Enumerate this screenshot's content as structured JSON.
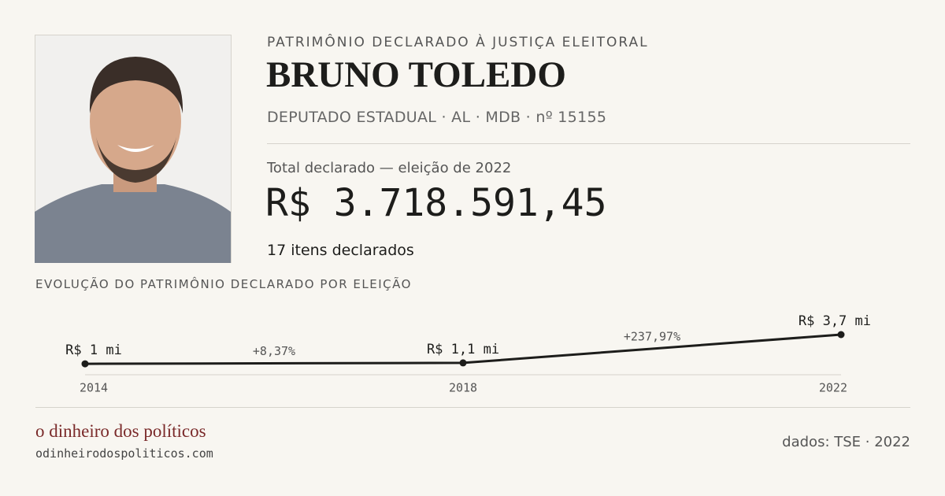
{
  "header": {
    "kicker": "PATRIMÔNIO DECLARADO À JUSTIÇA ELEITORAL",
    "name": "BRUNO TOLEDO",
    "subtitle": "DEPUTADO ESTADUAL · AL · MDB · nº 15155",
    "total_label": "Total declarado — eleição de 2022",
    "total": "R$ 3.718.591,45",
    "items": "17 itens declarados"
  },
  "chart_data": {
    "type": "line",
    "title": "EVOLUÇÃO DO PATRIMÔNIO DECLARADO POR ELEIÇÃO",
    "categories": [
      "2014",
      "2018",
      "2022"
    ],
    "values": [
      1.015,
      1.1,
      3.719
    ],
    "value_labels": [
      "R$ 1 mi",
      "R$ 1,1 mi",
      "R$ 3,7 mi"
    ],
    "changes": [
      8.37,
      237.97
    ],
    "change_labels": [
      "+8,37%",
      "+237,97%"
    ],
    "color": "#1d1d1b"
  },
  "footer": {
    "brand": "o dinheiro dos políticos",
    "url": "odinheirodospoliticos.com",
    "source": "dados: TSE · 2022"
  }
}
